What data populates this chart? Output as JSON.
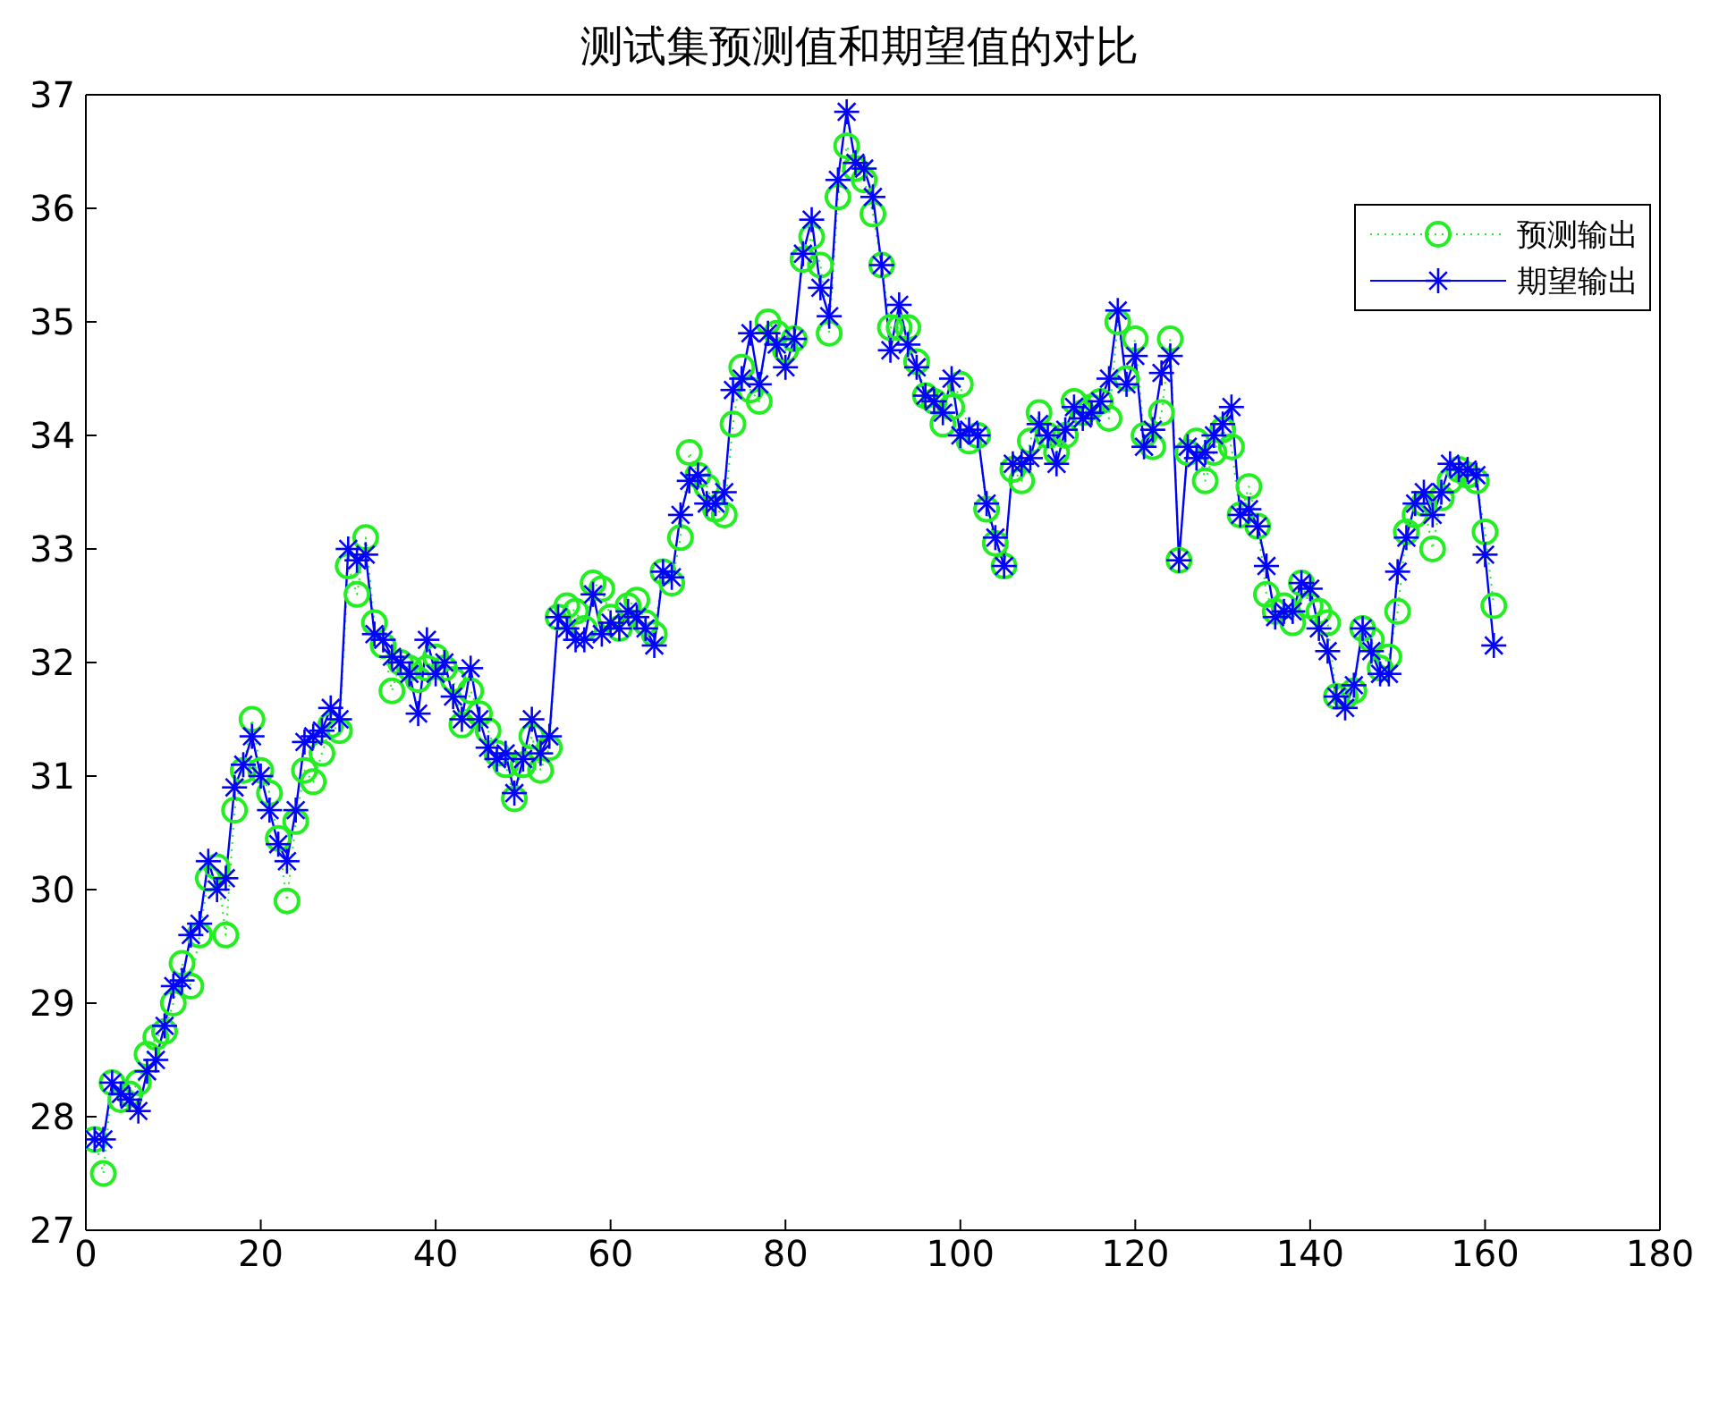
{
  "chart_data": {
    "type": "line",
    "title": "测试集预测值和期望值的对比",
    "x": [
      1,
      2,
      3,
      4,
      5,
      6,
      7,
      8,
      9,
      10,
      11,
      12,
      13,
      14,
      15,
      16,
      17,
      18,
      19,
      20,
      21,
      22,
      23,
      24,
      25,
      26,
      27,
      28,
      29,
      30,
      31,
      32,
      33,
      34,
      35,
      36,
      37,
      38,
      39,
      40,
      41,
      42,
      43,
      44,
      45,
      46,
      47,
      48,
      49,
      50,
      51,
      52,
      53,
      54,
      55,
      56,
      57,
      58,
      59,
      60,
      61,
      62,
      63,
      64,
      65,
      66,
      67,
      68,
      69,
      70,
      71,
      72,
      73,
      74,
      75,
      76,
      77,
      78,
      79,
      80,
      81,
      82,
      83,
      84,
      85,
      86,
      87,
      88,
      89,
      90,
      91,
      92,
      93,
      94,
      95,
      96,
      97,
      98,
      99,
      100,
      101,
      102,
      103,
      104,
      105,
      106,
      107,
      108,
      109,
      110,
      111,
      112,
      113,
      114,
      115,
      116,
      117,
      118,
      119,
      120,
      121,
      122,
      123,
      124,
      125,
      126,
      127,
      128,
      129,
      130,
      131,
      132,
      133,
      134,
      135,
      136,
      137,
      138,
      139,
      140,
      141,
      142,
      143,
      144,
      145,
      146,
      147,
      148,
      149,
      150,
      151,
      152,
      153,
      154,
      155,
      156,
      157,
      158,
      159,
      160,
      161
    ],
    "series": [
      {
        "name": "预测输出",
        "color": "#22ee22",
        "marker": "circle",
        "line_style": "dotted",
        "values": [
          27.8,
          27.5,
          28.3,
          28.15,
          28.2,
          28.3,
          28.55,
          28.7,
          28.75,
          29.0,
          29.35,
          29.15,
          29.6,
          30.1,
          30.2,
          29.6,
          30.7,
          31.05,
          31.5,
          31.05,
          30.85,
          30.45,
          29.9,
          30.6,
          31.05,
          30.95,
          31.2,
          31.45,
          31.4,
          32.85,
          32.6,
          33.1,
          32.35,
          32.15,
          31.75,
          32.0,
          31.95,
          31.85,
          31.95,
          32.05,
          31.95,
          31.85,
          31.45,
          31.75,
          31.55,
          31.4,
          31.2,
          31.1,
          30.8,
          31.1,
          31.35,
          31.05,
          31.25,
          32.4,
          32.5,
          32.45,
          32.3,
          32.7,
          32.65,
          32.4,
          32.3,
          32.5,
          32.55,
          32.35,
          32.25,
          32.8,
          32.7,
          33.1,
          33.85,
          33.65,
          33.55,
          33.35,
          33.3,
          34.1,
          34.6,
          34.4,
          34.3,
          35.0,
          34.9,
          34.75,
          34.85,
          35.55,
          35.75,
          35.5,
          34.9,
          36.1,
          36.55,
          36.35,
          36.25,
          35.95,
          35.5,
          34.95,
          34.95,
          34.95,
          34.65,
          34.35,
          34.3,
          34.1,
          34.25,
          34.45,
          33.95,
          34.0,
          33.35,
          33.05,
          32.85,
          33.7,
          33.6,
          33.95,
          34.2,
          34.0,
          33.85,
          34.0,
          34.3,
          34.2,
          34.25,
          34.3,
          34.15,
          35.0,
          34.5,
          34.85,
          34.0,
          33.9,
          34.2,
          34.85,
          32.9,
          33.85,
          33.95,
          33.6,
          33.85,
          34.05,
          33.9,
          33.3,
          33.55,
          33.2,
          32.6,
          32.45,
          32.5,
          32.35,
          32.7,
          32.5,
          32.45,
          32.35,
          31.7,
          31.7,
          31.75,
          32.3,
          32.2,
          31.95,
          32.05,
          32.45,
          33.15,
          33.3,
          33.4,
          33.0,
          33.45,
          33.6,
          33.7,
          33.65,
          33.6,
          33.15,
          32.5
        ]
      },
      {
        "name": "期望输出",
        "color": "#0000ff",
        "marker": "cross",
        "line_style": "solid",
        "values": [
          27.8,
          27.8,
          28.3,
          28.2,
          28.15,
          28.05,
          28.4,
          28.5,
          28.8,
          29.15,
          29.2,
          29.6,
          29.7,
          30.25,
          30.0,
          30.1,
          30.9,
          31.1,
          31.35,
          31.0,
          30.7,
          30.4,
          30.25,
          30.7,
          31.3,
          31.35,
          31.4,
          31.6,
          31.5,
          33.0,
          32.9,
          32.95,
          32.25,
          32.2,
          32.05,
          32.0,
          31.9,
          31.55,
          32.2,
          31.9,
          32.0,
          31.7,
          31.5,
          31.95,
          31.5,
          31.25,
          31.15,
          31.2,
          30.85,
          31.15,
          31.5,
          31.2,
          31.35,
          32.4,
          32.3,
          32.2,
          32.2,
          32.6,
          32.25,
          32.35,
          32.3,
          32.45,
          32.4,
          32.3,
          32.15,
          32.8,
          32.75,
          33.3,
          33.6,
          33.65,
          33.4,
          33.4,
          33.5,
          34.4,
          34.5,
          34.9,
          34.45,
          34.9,
          34.8,
          34.6,
          34.85,
          35.6,
          35.9,
          35.3,
          35.05,
          36.25,
          36.85,
          36.4,
          36.35,
          36.1,
          35.5,
          34.75,
          35.15,
          34.8,
          34.6,
          34.35,
          34.3,
          34.2,
          34.5,
          34.0,
          34.05,
          34.0,
          33.4,
          33.1,
          32.85,
          33.75,
          33.75,
          33.8,
          34.1,
          34.0,
          33.75,
          34.05,
          34.25,
          34.15,
          34.2,
          34.3,
          34.5,
          35.1,
          34.45,
          34.7,
          33.9,
          34.05,
          34.55,
          34.7,
          32.9,
          33.9,
          33.8,
          33.85,
          34.0,
          34.1,
          34.25,
          33.3,
          33.35,
          33.2,
          32.85,
          32.4,
          32.45,
          32.45,
          32.7,
          32.65,
          32.3,
          32.1,
          31.7,
          31.6,
          31.8,
          32.3,
          32.1,
          31.9,
          31.9,
          32.8,
          33.1,
          33.4,
          33.5,
          33.3,
          33.5,
          33.75,
          33.7,
          33.7,
          33.65,
          32.95,
          32.15
        ]
      }
    ],
    "xlim": [
      0,
      180
    ],
    "xticks": [
      0,
      20,
      40,
      60,
      80,
      100,
      120,
      140,
      160,
      180
    ],
    "ylim": [
      27,
      37
    ],
    "yticks": [
      27,
      28,
      29,
      30,
      31,
      32,
      33,
      34,
      35,
      36,
      37
    ],
    "legend": "top right"
  }
}
